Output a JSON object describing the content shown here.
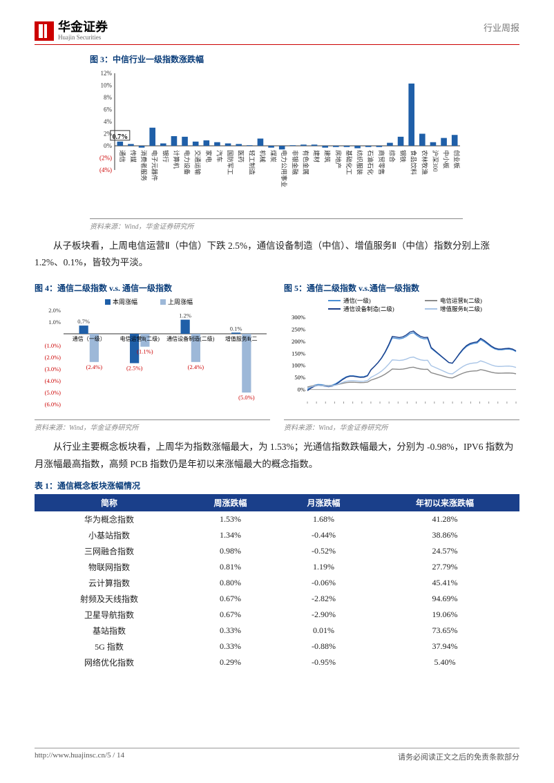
{
  "header": {
    "logo_cn": "华金证券",
    "logo_en": "Huajin Securities",
    "right": "行业周报"
  },
  "fig3": {
    "title": "图 3：中信行业一级指数涨跌幅",
    "source": "资料来源：Wind，华金证券研究所",
    "highlight_label": "0.7%",
    "ylim": [
      -4,
      12
    ],
    "yticks": [
      -4,
      -2,
      0,
      2,
      4,
      6,
      8,
      10,
      12
    ],
    "yticklabels_neg": [
      "(2%)",
      "(4%)"
    ],
    "bar_color": "#1f5fa8",
    "axis_color": "#333",
    "neg_label_color": "#c00",
    "categories": [
      "通信",
      "传媒",
      "消费者服务",
      "电子元器件",
      "银行",
      "计算机",
      "电力设备",
      "交通运输",
      "家电",
      "汽车",
      "国防军工",
      "医药",
      "轻工制造",
      "机械",
      "煤炭",
      "电力公用事业",
      "非银金融",
      "有色金属",
      "建材",
      "建筑",
      "房地产",
      "基础化工",
      "纺织服装",
      "石油石化",
      "商贸零售",
      "综合",
      "钢铁",
      "食品饮料",
      "农林牧渔",
      "沪深300",
      "中小板",
      "创业板"
    ],
    "values": [
      0.7,
      0.3,
      -0.3,
      3.0,
      0.4,
      1.6,
      1.5,
      0.7,
      0.9,
      0.6,
      0.4,
      0.3,
      0.1,
      1.2,
      -0.3,
      -0.6,
      0.1,
      0.2,
      0.2,
      -0.3,
      -0.2,
      -0.2,
      -0.4,
      -0.2,
      -0.2,
      0.5,
      1.5,
      10.3,
      2.0,
      0.6,
      1.3,
      1.8
    ]
  },
  "para1": "从子板块看，上周电信运营Ⅱ（中信）下跌 2.5%，通信设备制造（中信）、增值服务Ⅱ（中信）指数分别上涨 1.2%、0.1%，皆较为平淡。",
  "fig4": {
    "title": "图 4：通信二级指数 v.s. 通信一级指数",
    "source": "资料来源：Wind，华金证券研究所",
    "legend": [
      "本周涨幅",
      "上周涨幅"
    ],
    "colors": [
      "#1f5fa8",
      "#9db8d8"
    ],
    "categories": [
      "通信（一级）",
      "电信运营Ⅱ(二级)",
      "通信设备制造(二级)",
      "增值服务Ⅱ(二"
    ],
    "this_week": [
      0.7,
      -2.5,
      1.2,
      0.1
    ],
    "last_week": [
      -2.4,
      -1.1,
      -2.4,
      -5.0
    ],
    "this_labels": [
      "0.7%",
      "(2.5%)",
      "1.2%",
      "0.1%"
    ],
    "last_labels": [
      "(2.4%)",
      "(1.1%)",
      "(2.4%)",
      "(5.0%)"
    ],
    "ylim": [
      -6,
      2
    ],
    "yticks": [
      -6,
      -5,
      -4,
      -3,
      -2,
      -1,
      0,
      1,
      2
    ],
    "yticklabels": [
      "(6.0%)",
      "(5.0%)",
      "(4.0%)",
      "(3.0%)",
      "(2.0%)",
      "(1.0%)",
      "",
      "1.0%",
      "2.0%"
    ],
    "neg_color": "#c00"
  },
  "fig5": {
    "title": "图 5：通信二级指数 v.s.通信一级指数",
    "source": "资料来源：Wind，华金证券研究所",
    "legend": [
      "通信(一级)",
      "电信运营Ⅱ(二级)",
      "通信设备制造(二级)",
      "增值服务Ⅱ(二级)"
    ],
    "colors": [
      "#4a8fd6",
      "#8a8a8a",
      "#1a3f8a",
      "#a8c4e6"
    ],
    "ylim": [
      -50,
      300
    ],
    "yticks": [
      -50,
      0,
      50,
      100,
      150,
      200,
      250,
      300
    ],
    "yticklabels": [
      "",
      "0%",
      "50%",
      "100%",
      "150%",
      "200%",
      "250%",
      "300%"
    ]
  },
  "para2": "从行业主要概念板块看，上周华为指数涨幅最大，为 1.53%；光通信指数跌幅最大，分别为 -0.98%，IPV6 指数为月涨幅最高指数，高频 PCB 指数仍是年初以来涨幅最大的概念指数。",
  "table1": {
    "title": "表 1：通信概念板块涨幅情况",
    "columns": [
      "简称",
      "周涨跌幅",
      "月涨跌幅",
      "年初以来涨跌幅"
    ],
    "rows": [
      [
        "华为概念指数",
        "1.53%",
        "1.68%",
        "41.28%"
      ],
      [
        "小基站指数",
        "1.34%",
        "-0.44%",
        "38.86%"
      ],
      [
        "三网融合指数",
        "0.98%",
        "-0.52%",
        "24.57%"
      ],
      [
        "物联网指数",
        "0.81%",
        "1.19%",
        "27.79%"
      ],
      [
        "云计算指数",
        "0.80%",
        "-0.06%",
        "45.41%"
      ],
      [
        "射频及天线指数",
        "0.67%",
        "-2.82%",
        "94.69%"
      ],
      [
        "卫星导航指数",
        "0.67%",
        "-2.90%",
        "19.06%"
      ],
      [
        "基站指数",
        "0.33%",
        "0.01%",
        "73.65%"
      ],
      [
        "5G 指数",
        "0.33%",
        "-0.88%",
        "37.94%"
      ],
      [
        "网络优化指数",
        "0.29%",
        "-0.95%",
        "5.40%"
      ]
    ]
  },
  "footer": {
    "left": "http://www.huajinsc.cn/5 / 14",
    "right": "请务必阅读正文之后的免责条款部分"
  }
}
